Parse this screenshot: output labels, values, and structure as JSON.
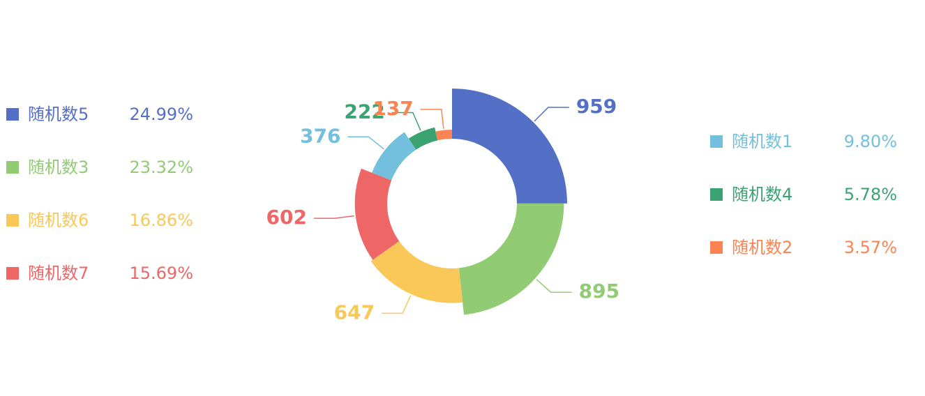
{
  "chart_data": {
    "type": "pie",
    "variant": "rose-donut",
    "series": [
      {
        "name": "随机数1",
        "value": 376,
        "percent": "9.80%",
        "color": "#73c0de"
      },
      {
        "name": "随机数2",
        "value": 137,
        "percent": "3.57%",
        "color": "#fc8452"
      },
      {
        "name": "随机数3",
        "value": 895,
        "percent": "23.32%",
        "color": "#91cc75"
      },
      {
        "name": "随机数4",
        "value": 222,
        "percent": "5.78%",
        "color": "#3ba272"
      },
      {
        "name": "随机数5",
        "value": 959,
        "percent": "24.99%",
        "color": "#5470c6"
      },
      {
        "name": "随机数6",
        "value": 647,
        "percent": "16.86%",
        "color": "#fac858"
      },
      {
        "name": "随机数7",
        "value": 602,
        "percent": "15.69%",
        "color": "#ee6666"
      }
    ],
    "slice_order": [
      "随机数5",
      "随机数3",
      "随机数6",
      "随机数7",
      "随机数1",
      "随机数4",
      "随机数2"
    ],
    "legend_left": [
      "随机数5",
      "随机数3",
      "随机数6",
      "随机数7"
    ],
    "legend_right": [
      "随机数1",
      "随机数4",
      "随机数2"
    ]
  }
}
